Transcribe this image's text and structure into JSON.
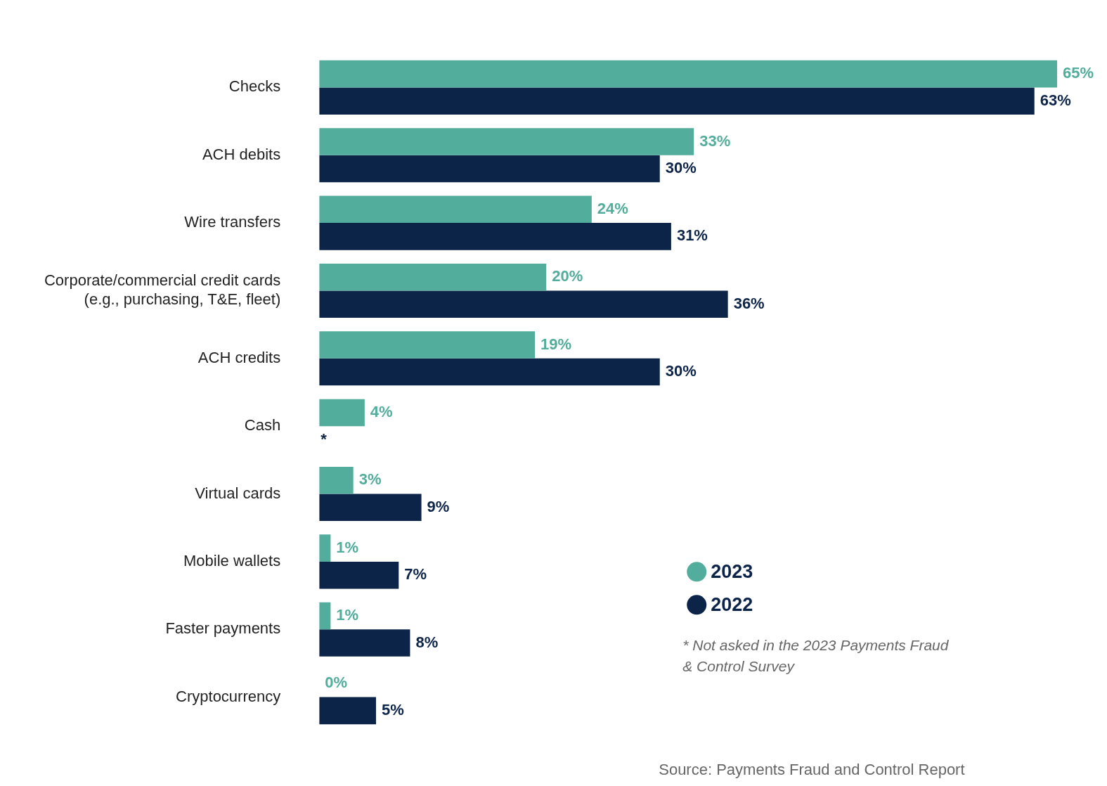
{
  "chart_data": {
    "type": "bar",
    "orientation": "horizontal",
    "categories": [
      "Checks",
      "ACH debits",
      "Wire transfers",
      "Corporate/commercial credit cards\n(e.g., purchasing, T&E, fleet)",
      "ACH credits",
      "Cash",
      "Virtual cards",
      "Mobile wallets",
      "Faster payments",
      "Cryptocurrency"
    ],
    "series": [
      {
        "name": "2023",
        "color": "#52ad9c",
        "values": [
          65,
          33,
          24,
          20,
          19,
          4,
          3,
          1,
          1,
          0
        ],
        "value_labels": [
          "65%",
          "33%",
          "24%",
          "20%",
          "19%",
          "4%",
          "3%",
          "1%",
          "1%",
          "0%"
        ]
      },
      {
        "name": "2022",
        "color": "#0d2449",
        "values": [
          63,
          30,
          31,
          36,
          30,
          null,
          9,
          7,
          8,
          5
        ],
        "value_labels": [
          "63%",
          "30%",
          "31%",
          "36%",
          "30%",
          "*",
          "9%",
          "7%",
          "8%",
          "5%"
        ]
      }
    ],
    "legend": "right",
    "annotations": [
      "* Not asked in the 2023 Payments Fraud & Control Survey",
      "Source: Payments Fraud and Control Report"
    ]
  }
}
